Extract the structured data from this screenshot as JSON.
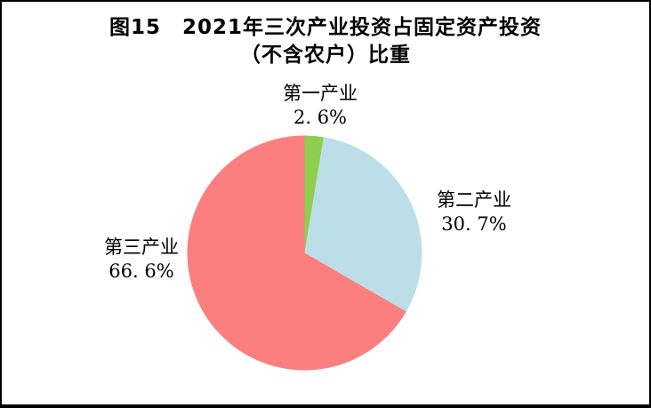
{
  "figure": {
    "title_line1": "图15　2021年三次产业投资占固定资产投资",
    "title_line2": "（不含农户）比重"
  },
  "chart_data": {
    "type": "pie",
    "title": "图15 2021年三次产业投资占固定资产投资（不含农户）比重",
    "unit": "%",
    "direction": "clockwise",
    "start_angle_deg": 0,
    "legend": "none",
    "labels_position": "outside",
    "slices": [
      {
        "label": "第一产业",
        "value": 2.6,
        "display": "2. 6%",
        "color": "#8DCE4E"
      },
      {
        "label": "第二产业",
        "value": 30.7,
        "display": "30. 7%",
        "color": "#BCDEE8"
      },
      {
        "label": "第三产业",
        "value": 66.6,
        "display": "66. 6%",
        "color": "#FB7F7F"
      }
    ]
  }
}
